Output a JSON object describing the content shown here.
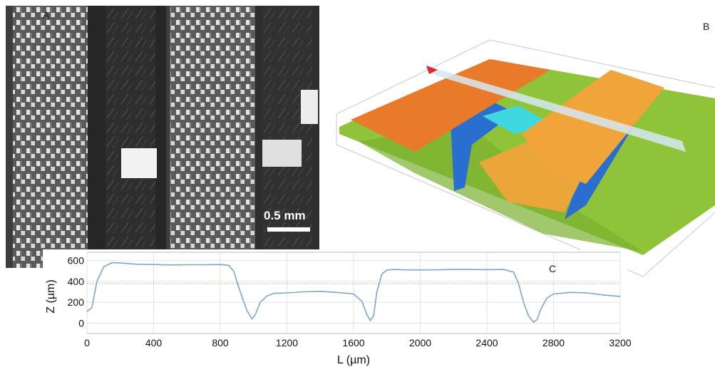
{
  "figure": {
    "panels": [
      {
        "letter": "A",
        "scale_bar": "0.5 mm"
      },
      {
        "letter": "B"
      },
      {
        "letter": "C"
      }
    ],
    "colors": {
      "profile_line": "#7aa6cf",
      "orange": "#e87a2a",
      "green": "#8fc43a",
      "blue": "#2a6fd0",
      "cyan": "#3fd8e0"
    }
  },
  "chart_data": {
    "type": "line",
    "title": "",
    "xlabel": "L (µm)",
    "ylabel": "Z (µm)",
    "xlim": [
      0,
      3200
    ],
    "ylim": [
      -100,
      680
    ],
    "xticks": [
      0,
      400,
      800,
      1200,
      1600,
      2000,
      2400,
      2800,
      3200
    ],
    "yticks": [
      0,
      200,
      400,
      600
    ],
    "grid": true,
    "series": [
      {
        "x": [
          0,
          30,
          60,
          100,
          150,
          200,
          300,
          400,
          500,
          600,
          700,
          800,
          850,
          880,
          920,
          960,
          990,
          1010,
          1040,
          1080,
          1120,
          1200,
          1300,
          1400,
          1500,
          1600,
          1650,
          1680,
          1700,
          1720,
          1740,
          1770,
          1800,
          1850,
          1900,
          2000,
          2100,
          2200,
          2300,
          2400,
          2500,
          2560,
          2590,
          2620,
          2650,
          2680,
          2700,
          2720,
          2760,
          2800,
          2900,
          3000,
          3100,
          3200
        ],
        "y": [
          110,
          150,
          400,
          540,
          580,
          578,
          565,
          562,
          558,
          560,
          560,
          562,
          555,
          500,
          300,
          120,
          40,
          80,
          200,
          260,
          285,
          290,
          300,
          305,
          295,
          280,
          210,
          80,
          25,
          70,
          300,
          470,
          510,
          515,
          512,
          510,
          512,
          515,
          515,
          513,
          515,
          490,
          380,
          200,
          70,
          10,
          30,
          120,
          240,
          280,
          295,
          290,
          270,
          255
        ]
      }
    ],
    "reference_line_y": 380
  }
}
